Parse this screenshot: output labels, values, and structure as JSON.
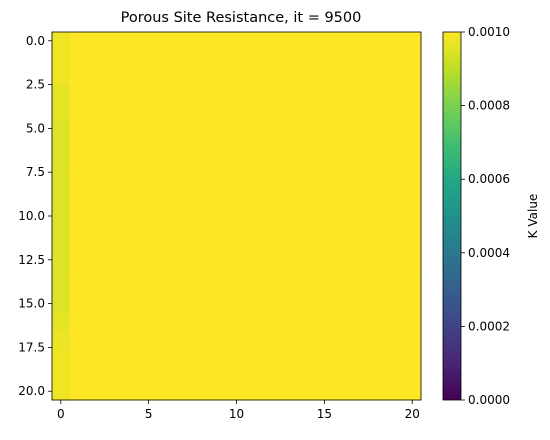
{
  "chart_data": {
    "type": "heatmap",
    "title": "Porous Site Resistance, it = 9500",
    "xlabel": "",
    "ylabel": "",
    "x_ticks": [
      "0",
      "5",
      "10",
      "15",
      "20"
    ],
    "y_ticks": [
      "0.0",
      "2.5",
      "5.0",
      "7.5",
      "10.0",
      "12.5",
      "15.0",
      "17.5",
      "20.0"
    ],
    "x_range": [
      -0.5,
      20.5
    ],
    "y_range": [
      20.5,
      -0.5
    ],
    "grid": false,
    "colormap": "viridis",
    "colorbar": {
      "label": "K Value",
      "range": [
        0,
        0.001
      ],
      "ticks": [
        "0.0000",
        "0.0002",
        "0.0004",
        "0.0006",
        "0.0008",
        "0.0010"
      ]
    },
    "grid_size": [
      21,
      21
    ],
    "default_value": 0.001,
    "column_0_values": [
      0.00098,
      0.00098,
      0.00098,
      0.00096,
      0.00096,
      0.00095,
      0.00095,
      0.00095,
      0.00095,
      0.00095,
      0.00095,
      0.00095,
      0.00095,
      0.00095,
      0.00095,
      0.00095,
      0.00096,
      0.00097,
      0.00098,
      0.00098,
      0.00098
    ]
  }
}
